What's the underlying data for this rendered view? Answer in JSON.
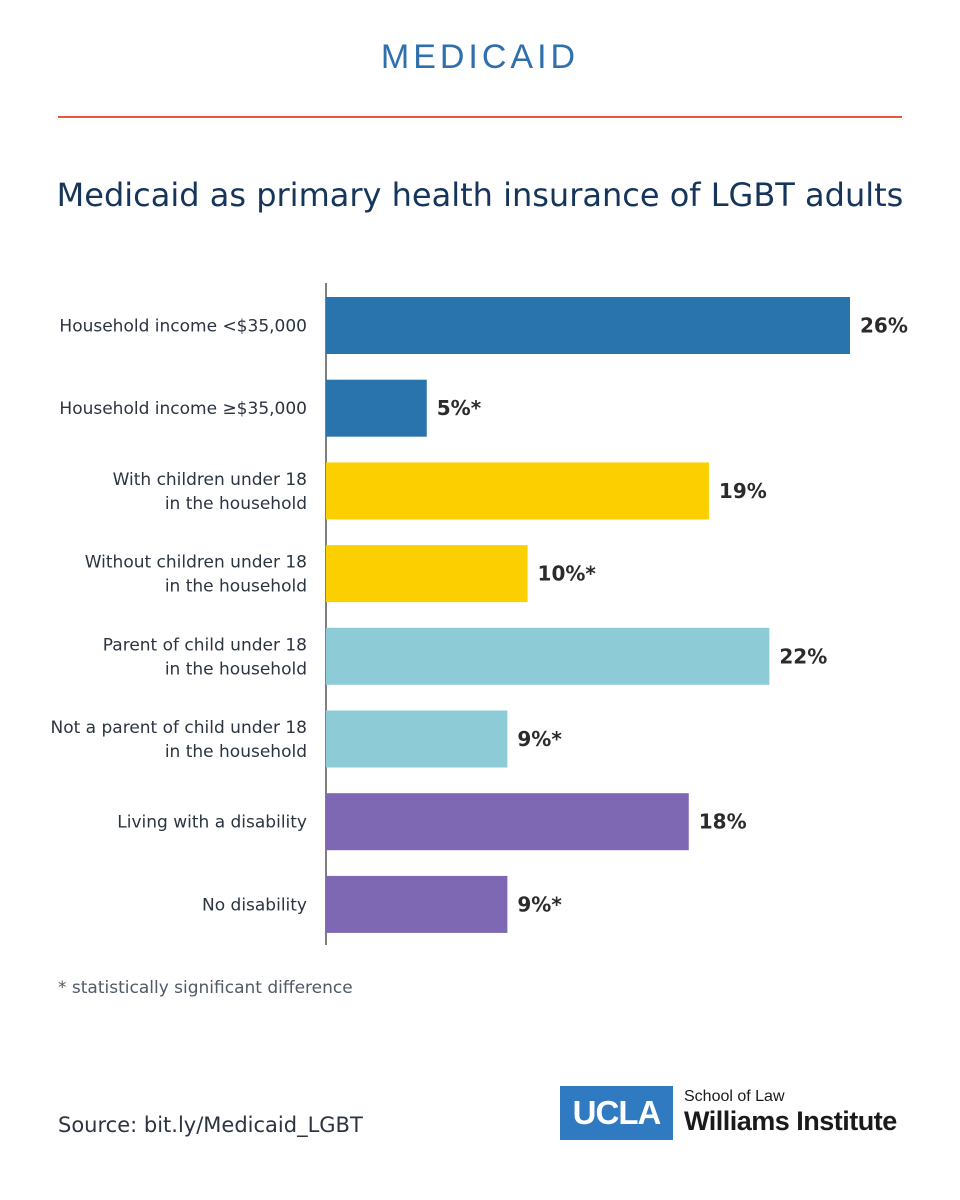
{
  "header": {
    "title": "MEDICAID"
  },
  "chart_data": {
    "type": "bar",
    "orientation": "horizontal",
    "title": "Medicaid as primary health insurance of LGBT adults",
    "categories": [
      [
        "Household income <$35,000"
      ],
      [
        "Household income ≥$35,000"
      ],
      [
        "With children under 18",
        "in the household"
      ],
      [
        "Without children under 18",
        "in the household"
      ],
      [
        "Parent of child under 18",
        "in the household"
      ],
      [
        "Not a parent of child under 18",
        "in the household"
      ],
      [
        "Living with a disability"
      ],
      [
        "No disability"
      ]
    ],
    "values": [
      26,
      5,
      19,
      10,
      22,
      9,
      18,
      9
    ],
    "value_labels": [
      "26%",
      "5%*",
      "19%",
      "10%*",
      "22%",
      "9%*",
      "18%",
      "9%*"
    ],
    "colors": [
      "#2a74ae",
      "#2a74ae",
      "#fcd000",
      "#fcd000",
      "#8dcbd6",
      "#8dcbd6",
      "#7f68b3",
      "#7f68b3"
    ],
    "xlim": [
      0,
      26
    ],
    "xlabel": "",
    "ylabel": "",
    "grid": false,
    "legend": "none"
  },
  "footnote": "* statistically significant difference",
  "source": "Source: bit.ly/Medicaid_LGBT",
  "logo": {
    "ucla": "UCLA",
    "school": "School of Law",
    "institute": "Williams Institute"
  }
}
